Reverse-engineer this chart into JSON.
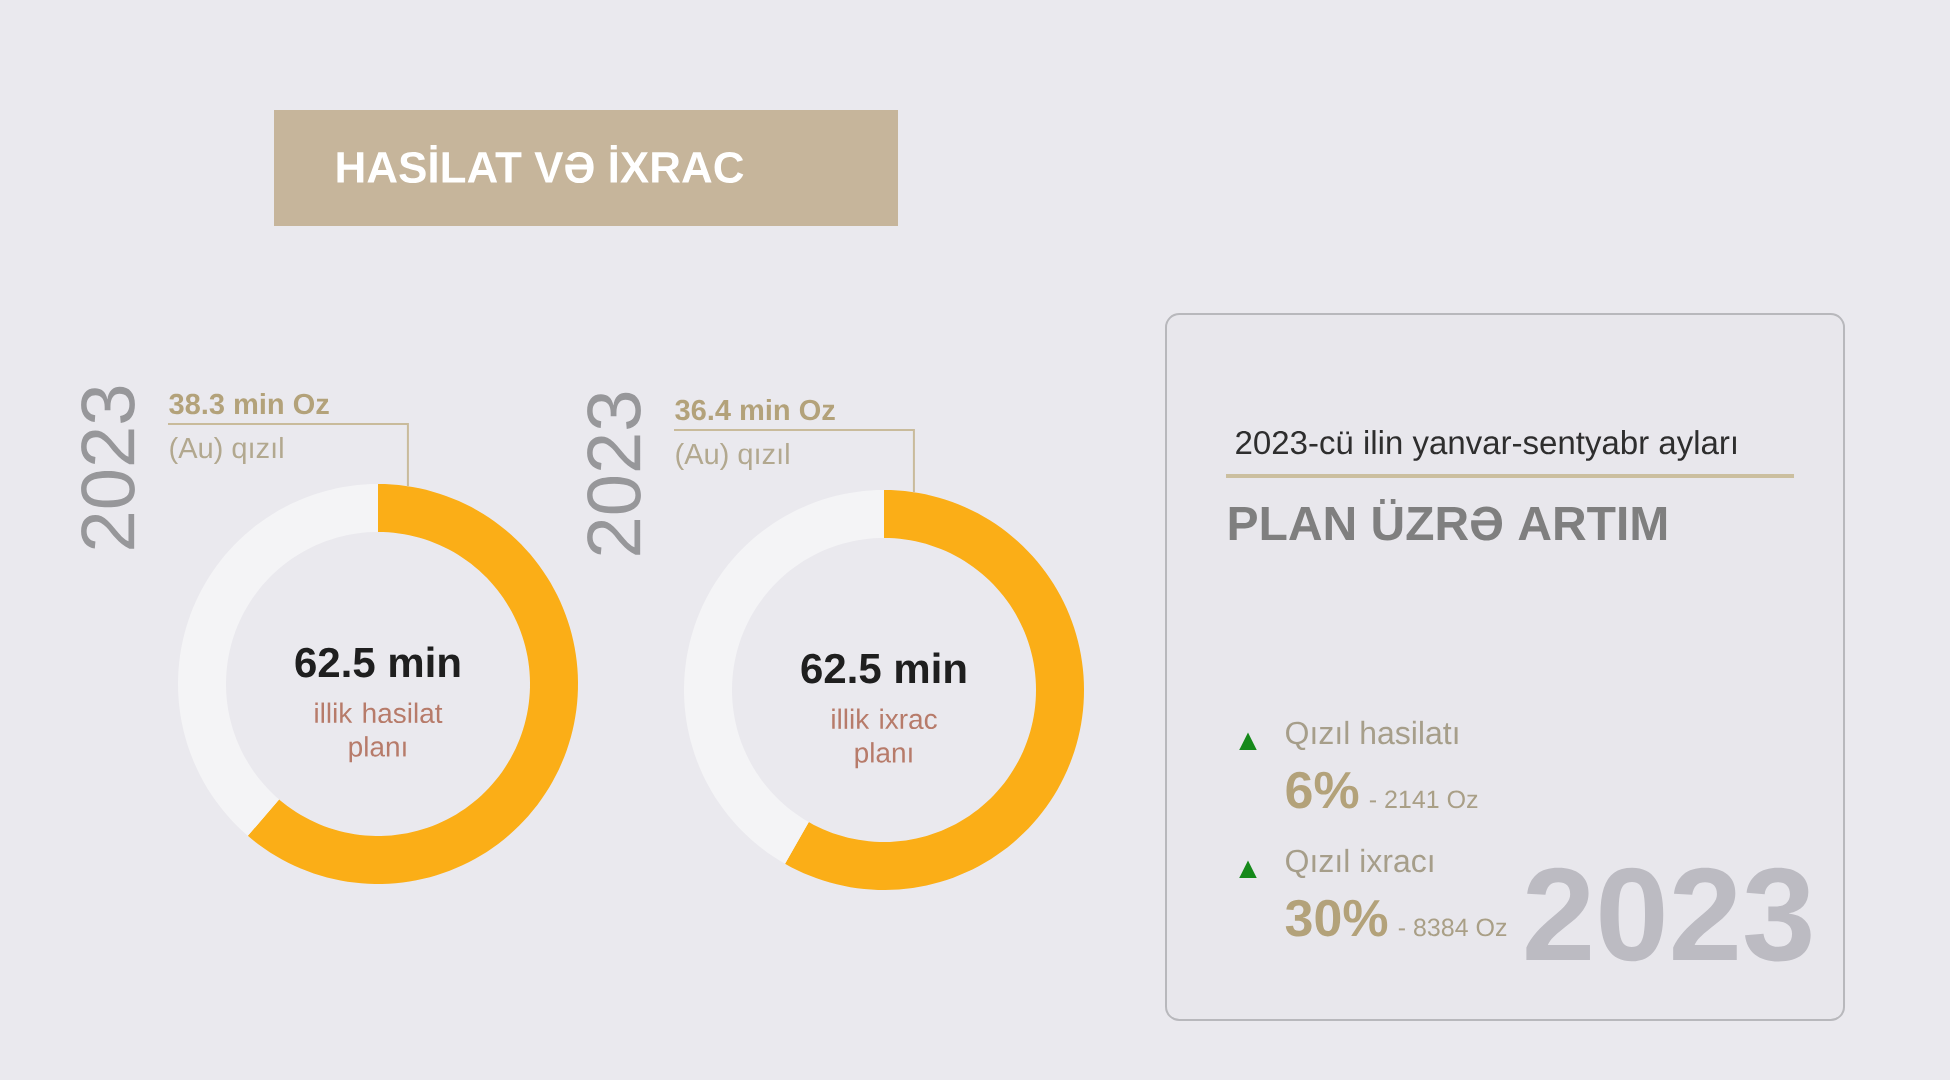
{
  "chart_data": [
    {
      "type": "other",
      "title": "HASİLAT VƏ İXRAC"
    },
    {
      "type": "donut",
      "title": "2023",
      "categories": [
        "(Au) qızıl",
        null
      ],
      "values": [
        38.3,
        24.2
      ],
      "colors": [
        "#fbae17",
        "#f4f4f6"
      ],
      "value_labels": [
        "38.3 min Oz",
        null
      ],
      "annotations": [
        "62.5 min",
        "illik hasilat planı"
      ]
    },
    {
      "type": "donut",
      "title": "2023",
      "categories": [
        "(Au) qızıl",
        null
      ],
      "values": [
        36.4,
        26.1
      ],
      "colors": [
        "#fbae17",
        "#f4f4f6"
      ],
      "value_labels": [
        "36.4 min Oz",
        null
      ],
      "annotations": [
        "62.5 min",
        "illik ixrac planı"
      ]
    },
    {
      "type": "other",
      "title": "PLAN ÜZRƏ ARTIM",
      "subtitle": "2023-cü ilin yanvar-sentyabr ayları",
      "annotations": [
        "2023",
        "▲",
        "Qızıl hasilatı",
        "6%",
        "- 2141 Oz",
        "▲",
        "Qızıl ixracı",
        "30%",
        "- 8384 Oz"
      ]
    }
  ]
}
